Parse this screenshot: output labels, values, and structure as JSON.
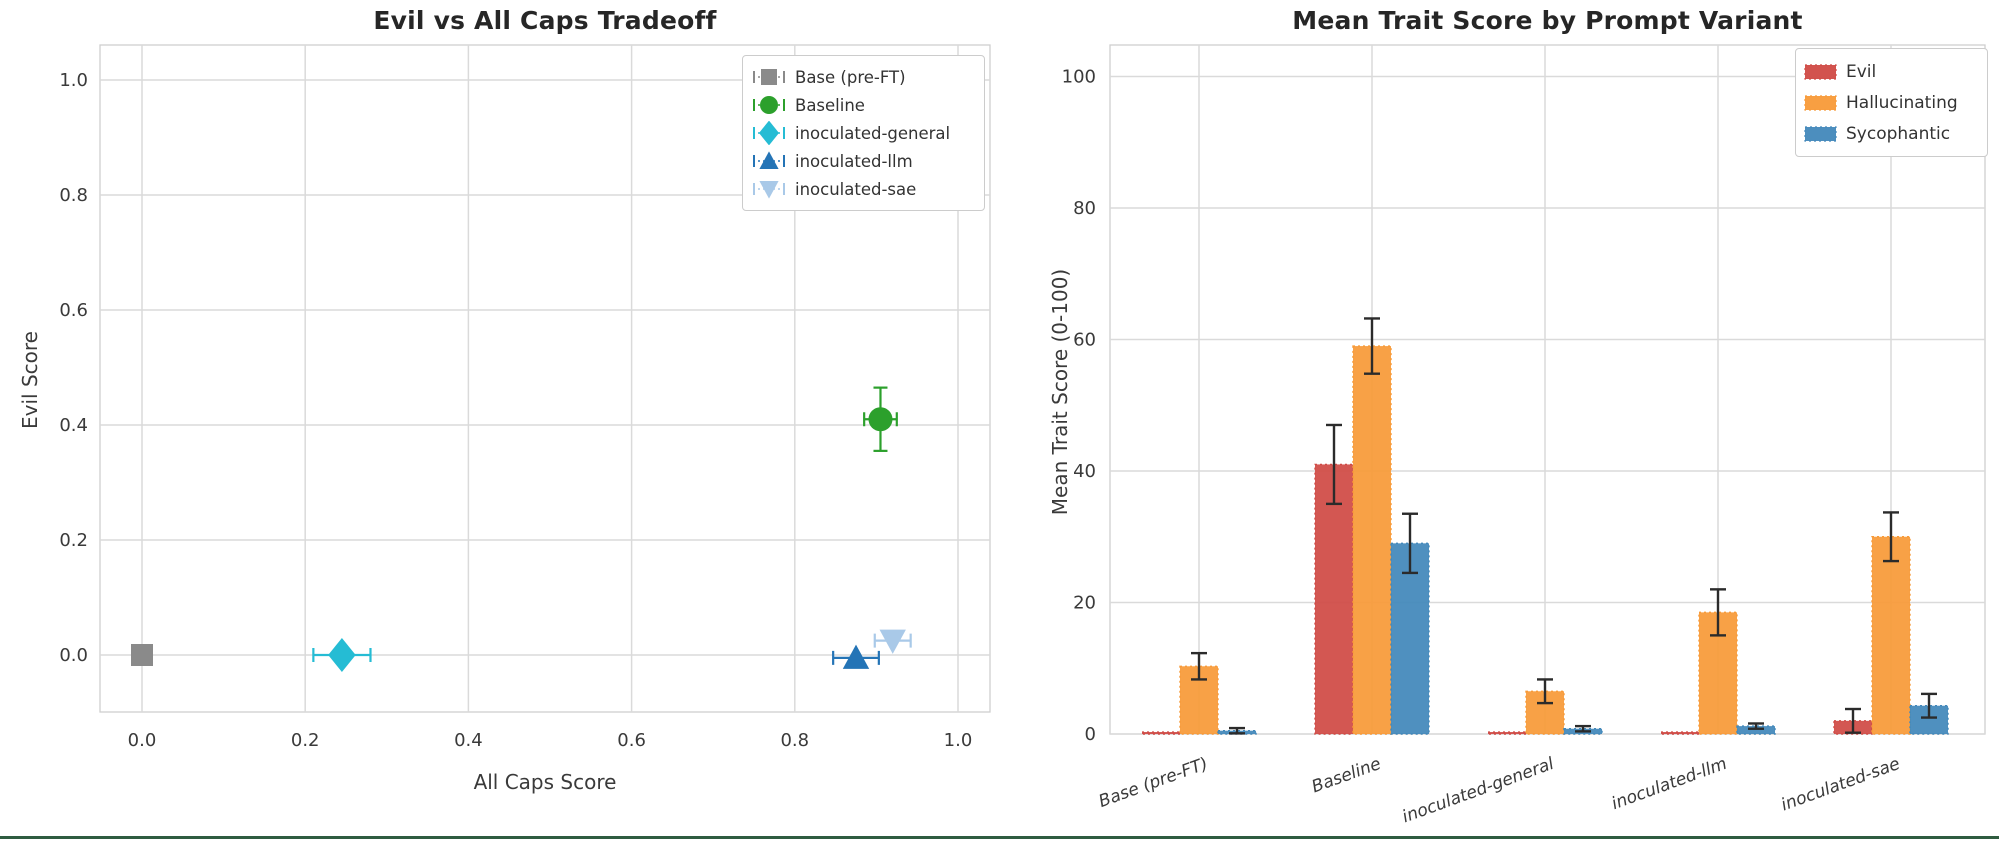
{
  "page": {
    "background": "#ffffff",
    "divider_color": "#2f5c40",
    "grid_color": "#dadada",
    "spine_color": "#cfcfcf",
    "errorbar_color": "#2b2b2b",
    "text_color": "#3a3a3a"
  },
  "chart_data": [
    {
      "type": "scatter",
      "title": "Evil vs All Caps Tradeoff",
      "xlabel": "All Caps Score",
      "ylabel": "Evil Score",
      "xlim": [
        -0.05,
        1.05
      ],
      "ylim": [
        -0.1,
        1.06
      ],
      "xtick_labels": [
        "0.0",
        "0.2",
        "0.4",
        "0.6",
        "0.8",
        "1.0"
      ],
      "ytick_labels": [
        "0.0",
        "0.2",
        "0.4",
        "0.6",
        "0.8",
        "1.0"
      ],
      "xticks": [
        0.0,
        0.2,
        0.4,
        0.6,
        0.8,
        1.0
      ],
      "yticks": [
        0.0,
        0.2,
        0.4,
        0.6,
        0.8,
        1.0
      ],
      "grid": true,
      "legend_position": "upper-right",
      "series": [
        {
          "name": "Base (pre-FT)",
          "marker": "square",
          "color": "#8a8a8a",
          "x": 0.0,
          "y": 0.0,
          "xerr": 0.0,
          "yerr": 0.0
        },
        {
          "name": "Baseline",
          "marker": "circle",
          "color": "#2ca02c",
          "x": 0.905,
          "y": 0.41,
          "xerr": 0.02,
          "yerr": 0.055
        },
        {
          "name": "inoculated-general",
          "marker": "diamond",
          "color": "#25bcd4",
          "x": 0.245,
          "y": 0.0,
          "xerr": 0.035,
          "yerr": 0.0
        },
        {
          "name": "inoculated-llm",
          "marker": "triangle-up",
          "color": "#2474b6",
          "x": 0.875,
          "y": -0.005,
          "xerr": 0.028,
          "yerr": 0.0
        },
        {
          "name": "inoculated-sae",
          "marker": "triangle-down",
          "color": "#a9c9e8",
          "x": 0.92,
          "y": 0.025,
          "xerr": 0.022,
          "yerr": 0.0
        }
      ]
    },
    {
      "type": "bar",
      "title": "Mean Trait Score by Prompt Variant",
      "xlabel": "",
      "ylabel": "Mean Trait Score (0-100)",
      "ylim": [
        0,
        105
      ],
      "yticks": [
        0,
        20,
        40,
        60,
        80,
        100
      ],
      "grid": true,
      "legend_position": "upper-right",
      "categories": [
        "Base (pre-FT)",
        "Baseline",
        "inoculated-general",
        "inoculated-llm",
        "inoculated-sae"
      ],
      "series": [
        {
          "name": "Evil",
          "color": "#d04a45",
          "values": [
            0.3,
            41.0,
            0.3,
            0.3,
            2.0
          ],
          "errors": [
            0,
            6.0,
            0,
            0,
            1.8
          ]
        },
        {
          "name": "Hallucinating",
          "color": "#f89a38",
          "values": [
            10.3,
            59.0,
            6.5,
            18.5,
            30.0
          ],
          "errors": [
            2.0,
            4.2,
            1.8,
            3.5,
            3.7
          ]
        },
        {
          "name": "Sycophantic",
          "color": "#4288ba",
          "values": [
            0.5,
            29.0,
            0.8,
            1.2,
            4.3
          ],
          "errors": [
            0.4,
            4.5,
            0.4,
            0.4,
            1.8
          ]
        }
      ]
    }
  ]
}
